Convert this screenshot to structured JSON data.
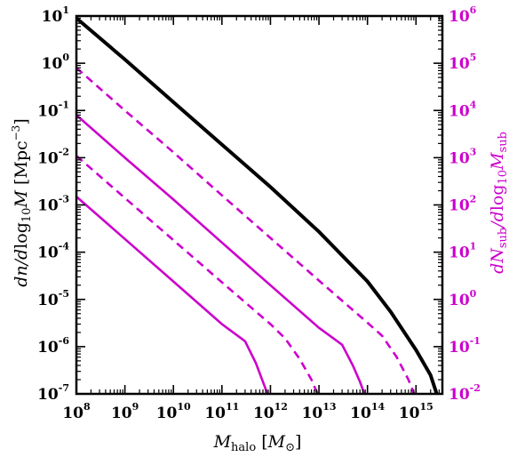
{
  "chart_data": {
    "type": "line",
    "title": "",
    "xlabel": "M_halo [M_⊙]",
    "ylabel_left": "d n / d log10 M [Mpc^-3]",
    "ylabel_right": "d N_sub / d log10 M_sub",
    "x_scale": "log",
    "y_scale": "log",
    "xlim": [
      100000000.0,
      3500000000000000.0
    ],
    "ylim_left": [
      1e-07,
      10
    ],
    "ylim_right": [
      0.01,
      1000000
    ],
    "grid": false,
    "legend": "none",
    "colors": {
      "halo": "#000000",
      "subhalo": "#cc00cc"
    },
    "x_ticks": [
      {
        "base": "10",
        "exp": "8"
      },
      {
        "base": "10",
        "exp": "9"
      },
      {
        "base": "10",
        "exp": "10"
      },
      {
        "base": "10",
        "exp": "11"
      },
      {
        "base": "10",
        "exp": "12"
      },
      {
        "base": "10",
        "exp": "13"
      },
      {
        "base": "10",
        "exp": "14"
      },
      {
        "base": "10",
        "exp": "15"
      }
    ],
    "y_left_ticks": [
      {
        "base": "10",
        "exp": "1"
      },
      {
        "base": "10",
        "exp": "0"
      },
      {
        "base": "10",
        "exp": "-1"
      },
      {
        "base": "10",
        "exp": "-2"
      },
      {
        "base": "10",
        "exp": "-3"
      },
      {
        "base": "10",
        "exp": "-4"
      },
      {
        "base": "10",
        "exp": "-5"
      },
      {
        "base": "10",
        "exp": "-6"
      },
      {
        "base": "10",
        "exp": "-7"
      }
    ],
    "y_right_ticks": [
      {
        "base": "10",
        "exp": "6"
      },
      {
        "base": "10",
        "exp": "5"
      },
      {
        "base": "10",
        "exp": "4"
      },
      {
        "base": "10",
        "exp": "3"
      },
      {
        "base": "10",
        "exp": "2"
      },
      {
        "base": "10",
        "exp": "1"
      },
      {
        "base": "10",
        "exp": "0"
      },
      {
        "base": "10",
        "exp": "-1"
      },
      {
        "base": "10",
        "exp": "-2"
      }
    ],
    "series": [
      {
        "axis": "left",
        "color": "#000000",
        "style": "solid",
        "width": "thick",
        "x": [
          100000000.0,
          1000000000.0,
          10000000000.0,
          100000000000.0,
          1000000000000.0,
          10000000000000.0,
          100000000000000.0,
          300000000000000.0,
          1000000000000000.0,
          2000000000000000.0,
          3000000000000000.0,
          3300000000000000.0
        ],
        "y": [
          9,
          1.2,
          0.15,
          0.019,
          0.0024,
          0.00027,
          2.4e-05,
          5.5e-06,
          8.5e-07,
          2.5e-07,
          7e-08,
          5e-08
        ]
      },
      {
        "axis": "right",
        "color": "#cc00cc",
        "style": "dashed",
        "x": [
          100000000.0,
          1000000000.0,
          10000000000.0,
          100000000000.0,
          1000000000000.0,
          10000000000000.0,
          100000000000000.0,
          200000000000000.0,
          400000000000000.0,
          700000000000000.0,
          1000000000000000.0,
          1100000000000000.0
        ],
        "y": [
          80000,
          10000,
          1300,
          160,
          20,
          2.5,
          0.32,
          0.17,
          0.06,
          0.02,
          0.008,
          0.0075
        ]
      },
      {
        "axis": "right",
        "color": "#cc00cc",
        "style": "solid",
        "x": [
          100000000.0,
          1000000000.0,
          10000000000.0,
          100000000000.0,
          1000000000000.0,
          10000000000000.0,
          30000000000000.0,
          50000000000000.0,
          70000000000000.0,
          90000000000000.0,
          95000000000000.0
        ],
        "y": [
          8000,
          1000,
          130,
          16,
          2,
          0.25,
          0.11,
          0.04,
          0.018,
          0.009,
          0.008
        ]
      },
      {
        "axis": "right",
        "color": "#cc00cc",
        "style": "dashed",
        "x": [
          100000000.0,
          1000000000.0,
          10000000000.0,
          100000000000.0,
          1000000000000.0,
          2000000000000.0,
          4000000000000.0,
          7000000000000.0,
          10000000000000.0,
          11000000000000.0
        ],
        "y": [
          1100,
          140,
          18,
          2.3,
          0.3,
          0.15,
          0.055,
          0.02,
          0.0085,
          0.0078
        ]
      },
      {
        "axis": "right",
        "color": "#cc00cc",
        "style": "solid",
        "x": [
          100000000.0,
          1000000000.0,
          10000000000.0,
          100000000000.0,
          300000000000.0,
          500000000000.0,
          700000000000.0,
          900000000000.0,
          950000000000.0
        ],
        "y": [
          150,
          19,
          2.4,
          0.3,
          0.13,
          0.045,
          0.018,
          0.009,
          0.008
        ]
      }
    ]
  }
}
